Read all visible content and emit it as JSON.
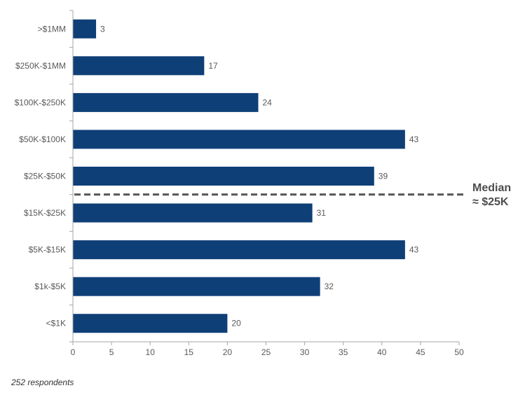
{
  "chart_data": {
    "type": "bar",
    "orientation": "horizontal",
    "categories": [
      ">$1MM",
      "$250K-$1MM",
      "$100K-$250K",
      "$50K-$100K",
      "$25K-$50K",
      "$15K-$25K",
      "$5K-$15K",
      "$1k-$5K",
      "<$1K"
    ],
    "values": [
      3,
      17,
      24,
      43,
      39,
      31,
      43,
      32,
      20
    ],
    "xlim": [
      0,
      50
    ],
    "x_ticks": [
      0,
      5,
      10,
      15,
      20,
      25,
      30,
      35,
      40,
      45,
      50
    ],
    "bar_color": "#0f3f77",
    "grid": false,
    "annotation": {
      "line1": "Median",
      "line2": "≈ $25K",
      "between": [
        "$25K-$50K",
        "$15K-$25K"
      ]
    }
  },
  "footnote": "252 respondents"
}
